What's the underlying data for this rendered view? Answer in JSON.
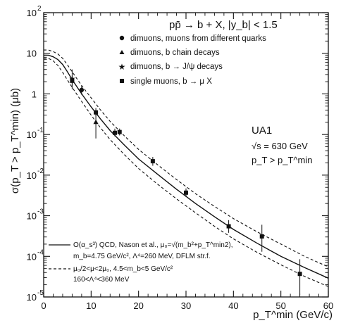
{
  "chart_data": {
    "type": "scatter",
    "title": "pp̄ → b + X, |y_b| < 1.5",
    "xlabel": "p_T^min (GeV/c)",
    "ylabel": "σ(p_T > p_T^min) (μb)",
    "xlim": [
      0,
      60
    ],
    "ylim_log10": [
      -5,
      2
    ],
    "y_scale": "log",
    "x_ticks": [
      "0",
      "10",
      "20",
      "30",
      "40",
      "50",
      "60"
    ],
    "y_ticks": [
      {
        "base": "10",
        "exp": "-5"
      },
      {
        "base": "10",
        "exp": "-4"
      },
      {
        "base": "10",
        "exp": "-3"
      },
      {
        "base": "10",
        "exp": "-2"
      },
      {
        "base": "10",
        "exp": "-1"
      },
      {
        "base": "1",
        "exp": ""
      },
      {
        "base": "10",
        "exp": ""
      },
      {
        "base": "10",
        "exp": "2"
      }
    ],
    "experiment": {
      "name": "UA1",
      "energy": "√s = 630 GeV",
      "cut": "p_T > p_T^min"
    },
    "legend_markers": [
      {
        "symbol": "circle",
        "label": "dimuons, muons from different quarks"
      },
      {
        "symbol": "triangle",
        "label": "dimuons, b chain decays"
      },
      {
        "symbol": "star",
        "label": "dimuons, b → J/ψ decays"
      },
      {
        "symbol": "square",
        "label": "single muons, b → μ X"
      }
    ],
    "legend_lines": [
      {
        "style": "solid",
        "lines": [
          "O(α_s³) QCD, Nason et al., μ₀=√(m_b²+p_T^min2),",
          "m_b=4.75 GeV/c², Λ⁴=260 MeV, DFLM str.f."
        ]
      },
      {
        "style": "dashed",
        "lines": [
          "μ₀/2<μ<2μ₀, 4.5<m_b<5 GeV/c²",
          "160<Λ⁴<360 MeV"
        ]
      }
    ],
    "series": [
      {
        "symbol": "circle",
        "points": [
          {
            "x": 8,
            "y": 1.25,
            "ylo": 0.95,
            "yhi": 1.6
          }
        ]
      },
      {
        "symbol": "triangle",
        "points": [
          {
            "x": 11,
            "y": 0.2,
            "ylo": 0.08,
            "yhi": 0.4
          }
        ]
      },
      {
        "symbol": "star",
        "points": [
          {
            "x": 6,
            "y": 2.4,
            "ylo": 1.3,
            "yhi": 4.0
          }
        ]
      },
      {
        "symbol": "square",
        "points": [
          {
            "x": 6,
            "y": 2.1,
            "ylo": 1.6,
            "yhi": 2.8
          },
          {
            "x": 11,
            "y": 0.35,
            "ylo": 0.28,
            "yhi": 0.45
          },
          {
            "x": 15,
            "y": 0.11,
            "ylo": 0.09,
            "yhi": 0.14
          },
          {
            "x": 16,
            "y": 0.115,
            "ylo": 0.095,
            "yhi": 0.14
          },
          {
            "x": 23,
            "y": 0.022,
            "ylo": 0.017,
            "yhi": 0.028
          },
          {
            "x": 30,
            "y": 0.0037,
            "ylo": 0.0029,
            "yhi": 0.0047
          },
          {
            "x": 39,
            "y": 0.00055,
            "ylo": 0.00038,
            "yhi": 0.00078
          },
          {
            "x": 46,
            "y": 0.00031,
            "ylo": 0.00013,
            "yhi": 0.0006
          },
          {
            "x": 54,
            "y": 3.7e-05,
            "ylo": 1.1e-05,
            "yhi": 8.5e-05
          }
        ]
      }
    ],
    "curves": [
      {
        "style": "solid",
        "points": [
          [
            0,
            9
          ],
          [
            1,
            9
          ],
          [
            2,
            8.2
          ],
          [
            3,
            7.0
          ],
          [
            4,
            5.3
          ],
          [
            5,
            3.5
          ],
          [
            6,
            2.25
          ],
          [
            8,
            1.0
          ],
          [
            10,
            0.48
          ],
          [
            12,
            0.24
          ],
          [
            14,
            0.125
          ],
          [
            17,
            0.055
          ],
          [
            20,
            0.025
          ],
          [
            24,
            0.0105
          ],
          [
            28,
            0.0045
          ],
          [
            32,
            0.002
          ],
          [
            36,
            0.00095
          ],
          [
            40,
            0.00046
          ],
          [
            45,
            0.00021
          ],
          [
            50,
            0.0001
          ],
          [
            55,
            5.3e-05
          ],
          [
            60,
            2.9e-05
          ]
        ]
      },
      {
        "style": "dashed",
        "points": [
          [
            0,
            12
          ],
          [
            1,
            12
          ],
          [
            2,
            11
          ],
          [
            3,
            9.6
          ],
          [
            4,
            7.5
          ],
          [
            5,
            5.2
          ],
          [
            6,
            3.5
          ],
          [
            8,
            1.6
          ],
          [
            10,
            0.8
          ],
          [
            12,
            0.4
          ],
          [
            14,
            0.21
          ],
          [
            17,
            0.093
          ],
          [
            20,
            0.043
          ],
          [
            24,
            0.018
          ],
          [
            28,
            0.0078
          ],
          [
            32,
            0.0035
          ],
          [
            36,
            0.0017
          ],
          [
            40,
            0.00085
          ],
          [
            45,
            0.0004
          ],
          [
            50,
            0.0002
          ],
          [
            55,
            0.0001
          ],
          [
            60,
            5.5e-05
          ]
        ]
      },
      {
        "style": "dashed",
        "points": [
          [
            0,
            7.5
          ],
          [
            1,
            7.5
          ],
          [
            2,
            6.5
          ],
          [
            3,
            5.0
          ],
          [
            4,
            3.4
          ],
          [
            5,
            2.2
          ],
          [
            6,
            1.45
          ],
          [
            8,
            0.65
          ],
          [
            10,
            0.3
          ],
          [
            12,
            0.145
          ],
          [
            14,
            0.075
          ],
          [
            17,
            0.032
          ],
          [
            20,
            0.0145
          ],
          [
            24,
            0.006
          ],
          [
            28,
            0.0026
          ],
          [
            32,
            0.00118
          ],
          [
            36,
            0.00055
          ],
          [
            40,
            0.00027
          ],
          [
            45,
            0.000125
          ],
          [
            50,
            6.2e-05
          ],
          [
            55,
            3.2e-05
          ],
          [
            60,
            1.8e-05
          ]
        ]
      }
    ]
  }
}
